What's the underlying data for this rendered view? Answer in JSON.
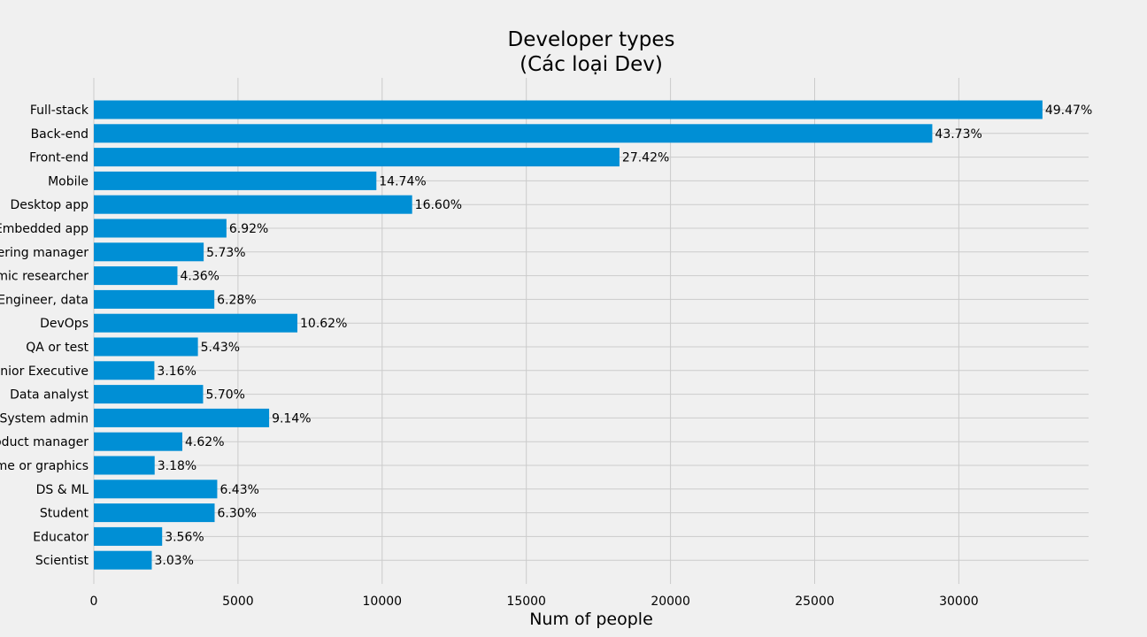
{
  "chart_data": {
    "type": "bar",
    "orientation": "horizontal",
    "title": [
      "Developer types",
      "(Các loại Dev)"
    ],
    "xlabel": "Num of people",
    "ylabel": "",
    "xlim": [
      0,
      34500
    ],
    "xticks": [
      0,
      5000,
      10000,
      15000,
      20000,
      25000,
      30000
    ],
    "grid": true,
    "bar_color": "#008fd5",
    "background": "#f0f0f0",
    "categories": [
      "Full-stack",
      "Back-end",
      "Front-end",
      "Mobile",
      "Desktop app",
      "Embedded app",
      "Engineering manager",
      "Academic researcher",
      "Engineer, data",
      "DevOps",
      "QA or test",
      "Senior Executive",
      "Data analyst",
      "System admin",
      "Product manager",
      "Game or graphics",
      "DS & ML",
      "Student",
      "Educator",
      "Scientist"
    ],
    "values": [
      32900,
      29080,
      18230,
      9800,
      11040,
      4600,
      3810,
      2900,
      4180,
      7060,
      3610,
      2100,
      3790,
      6080,
      3070,
      2110,
      4280,
      4190,
      2370,
      2010
    ],
    "data_labels": [
      "49.47%",
      "43.73%",
      "27.42%",
      "14.74%",
      "16.60%",
      "6.92%",
      "5.73%",
      "4.36%",
      "6.28%",
      "10.62%",
      "5.43%",
      "3.16%",
      "5.70%",
      "9.14%",
      "4.62%",
      "3.18%",
      "6.43%",
      "6.30%",
      "3.56%",
      "3.03%"
    ]
  }
}
